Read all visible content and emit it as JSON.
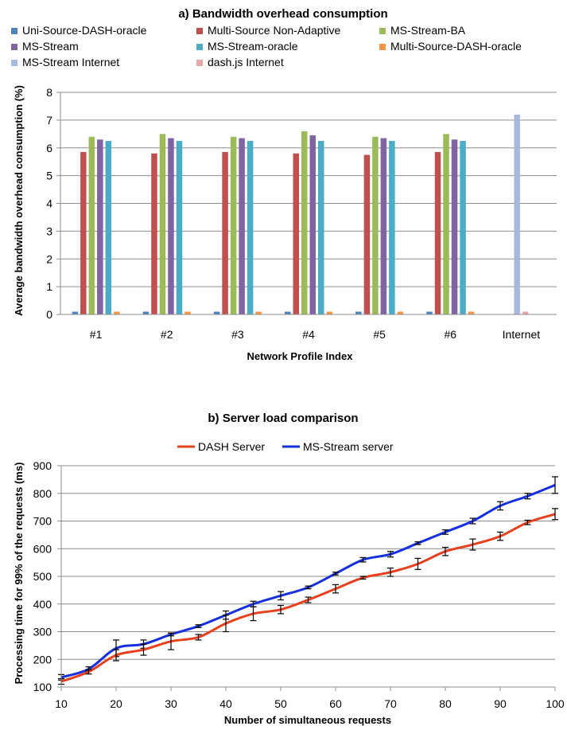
{
  "chart_data": [
    {
      "type": "bar",
      "title": "a) Bandwidth overhead consumption",
      "xlabel": "Network Profile Index",
      "ylabel": "Average bandwidth overhead consumption (%)",
      "ylim": [
        0,
        8
      ],
      "yticks": [
        "0",
        "1",
        "2",
        "3",
        "4",
        "5",
        "6",
        "7",
        "8"
      ],
      "grid": true,
      "legend": "top",
      "categories": [
        "#1",
        "#2",
        "#3",
        "#4",
        "#5",
        "#6",
        "Internet"
      ],
      "series": [
        {
          "name": "Uni-Source-DASH-oracle",
          "color": "#4f81bd",
          "values": [
            0.1,
            0.1,
            0.1,
            0.1,
            0.1,
            0.1,
            0
          ]
        },
        {
          "name": "Multi-Source Non-Adaptive",
          "color": "#c0504d",
          "values": [
            5.85,
            5.8,
            5.85,
            5.8,
            5.75,
            5.85,
            0
          ]
        },
        {
          "name": "MS-Stream-BA",
          "color": "#9bbb59",
          "values": [
            6.4,
            6.5,
            6.4,
            6.6,
            6.4,
            6.5,
            0
          ]
        },
        {
          "name": "MS-Stream",
          "color": "#8064a2",
          "values": [
            6.3,
            6.35,
            6.35,
            6.45,
            6.35,
            6.3,
            0
          ]
        },
        {
          "name": "MS-Stream-oracle",
          "color": "#4bacc6",
          "values": [
            6.25,
            6.25,
            6.25,
            6.25,
            6.25,
            6.25,
            0
          ]
        },
        {
          "name": "Multi-Source-DASH-oracle",
          "color": "#f79646",
          "values": [
            0.1,
            0.1,
            0.1,
            0.1,
            0.1,
            0.1,
            0
          ]
        },
        {
          "name": "MS-Stream Internet",
          "color": "#a6b9dd",
          "values": [
            0,
            0,
            0,
            0,
            0,
            0,
            7.2
          ]
        },
        {
          "name": "dash.js Internet",
          "color": "#e6a8a8",
          "values": [
            0,
            0,
            0,
            0,
            0,
            0,
            0.1
          ]
        }
      ]
    },
    {
      "type": "line",
      "title": "b) Server load comparison",
      "xlabel": "Number of simultaneous requests",
      "ylabel": "Processing time for 99% of the requests (ms)",
      "xlim": [
        10,
        100
      ],
      "ylim": [
        100,
        900
      ],
      "xticks": [
        "10",
        "20",
        "30",
        "40",
        "50",
        "60",
        "70",
        "80",
        "90",
        "100"
      ],
      "yticks": [
        "100",
        "200",
        "300",
        "400",
        "500",
        "600",
        "700",
        "800",
        "900"
      ],
      "grid": true,
      "legend": "top",
      "x": [
        10,
        15,
        20,
        25,
        30,
        35,
        40,
        45,
        50,
        55,
        60,
        65,
        70,
        75,
        80,
        85,
        90,
        95,
        100
      ],
      "series": [
        {
          "name": "DASH Server",
          "color": "#e8401c",
          "values": [
            120,
            155,
            215,
            235,
            265,
            280,
            330,
            365,
            380,
            415,
            455,
            495,
            515,
            545,
            590,
            615,
            645,
            695,
            725
          ],
          "errors": [
            10,
            8,
            20,
            20,
            30,
            10,
            30,
            25,
            15,
            10,
            15,
            5,
            15,
            20,
            15,
            20,
            15,
            8,
            20
          ]
        },
        {
          "name": "MS-Stream server",
          "color": "#1430e0",
          "values": [
            135,
            165,
            240,
            255,
            290,
            320,
            360,
            400,
            430,
            460,
            510,
            560,
            580,
            620,
            660,
            700,
            755,
            790,
            830
          ],
          "errors": [
            10,
            8,
            30,
            15,
            5,
            5,
            15,
            10,
            15,
            5,
            5,
            8,
            10,
            5,
            8,
            10,
            15,
            10,
            30
          ]
        }
      ]
    }
  ]
}
